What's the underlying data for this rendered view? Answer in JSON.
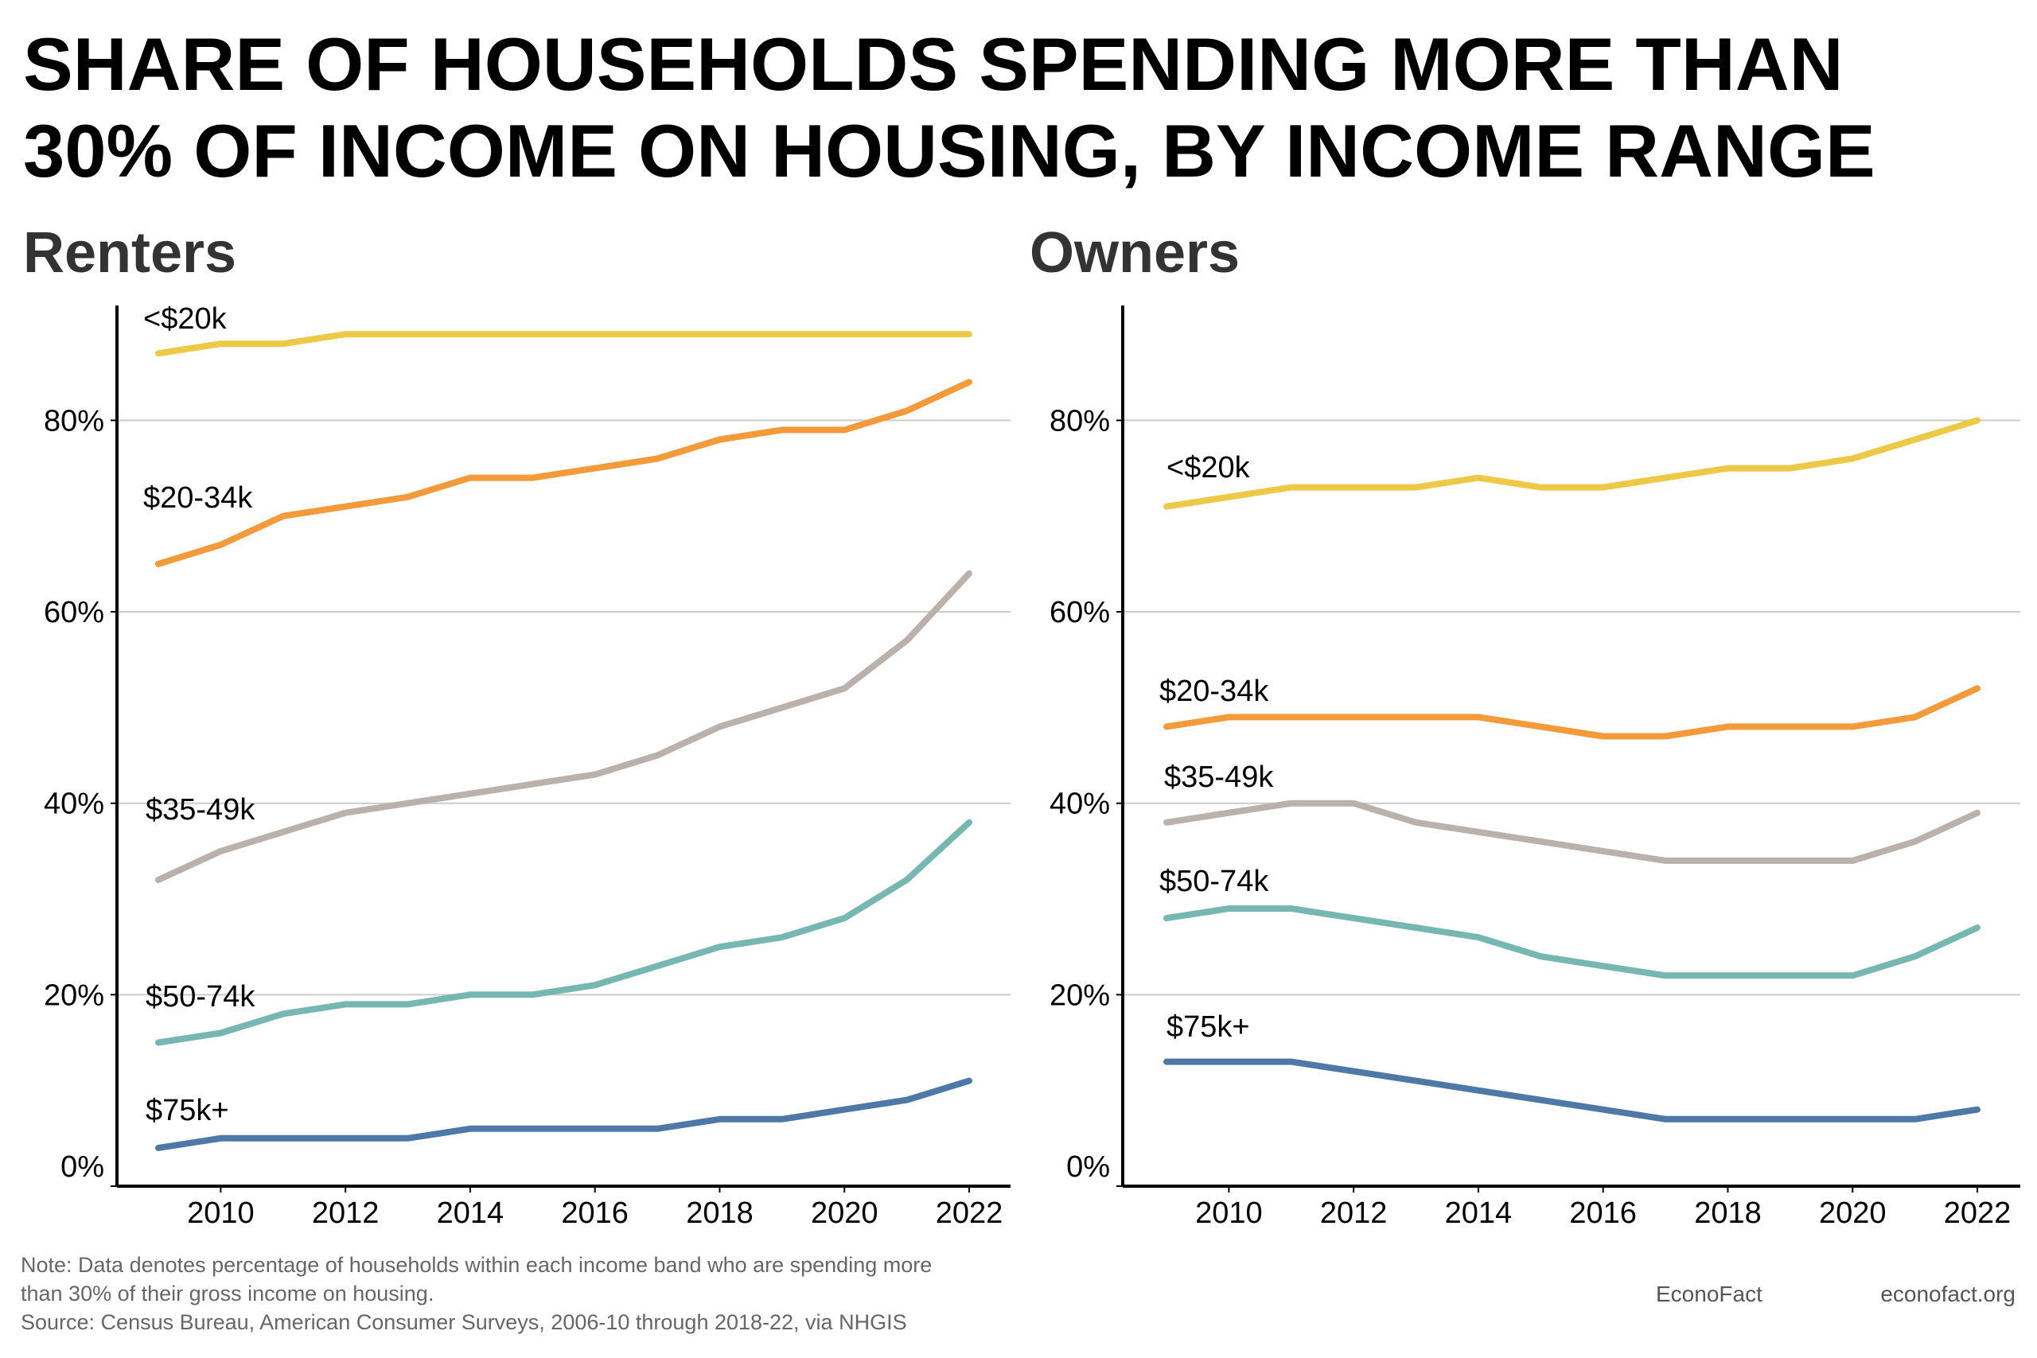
{
  "title_lines": [
    "SHARE OF HOUSEHOLDS SPENDING MORE THAN",
    "30% OF INCOME ON HOUSING, BY INCOME RANGE"
  ],
  "notes": [
    "Note: Data denotes percentage of households within each income band who are spending more",
    "than 30% of their gross income on housing.",
    "Source: Census Bureau, American Consumer Surveys, 2006-10 through 2018-22, via NHGIS"
  ],
  "credit_left": "EconoFact",
  "credit_right": "econofact.org",
  "chart_data": [
    {
      "type": "line",
      "title": "Renters",
      "x": [
        2009,
        2010,
        2011,
        2012,
        2013,
        2014,
        2015,
        2016,
        2017,
        2018,
        2019,
        2020,
        2021,
        2022
      ],
      "xticks": [
        2010,
        2012,
        2014,
        2016,
        2018,
        2020,
        2022
      ],
      "yticks": [
        0,
        20,
        40,
        60,
        80
      ],
      "ytick_labels": [
        "0%",
        "20%",
        "40%",
        "60%",
        "80%"
      ],
      "ylim": [
        0,
        92
      ],
      "grid": "horizontal",
      "legend": "inline labels",
      "series": [
        {
          "name": "<$20k",
          "color": "#EDC948",
          "values": [
            87,
            88,
            88,
            89,
            89,
            89,
            89,
            89,
            89,
            89,
            89,
            89,
            89,
            89
          ]
        },
        {
          "name": "$20-34k",
          "color": "#F39A3B",
          "values": [
            65,
            67,
            70,
            71,
            72,
            74,
            74,
            75,
            76,
            78,
            79,
            79,
            81,
            84
          ]
        },
        {
          "name": "$35-49k",
          "color": "#BAB0AC",
          "values": [
            32,
            35,
            37,
            39,
            40,
            41,
            42,
            43,
            45,
            48,
            50,
            52,
            57,
            64
          ]
        },
        {
          "name": "$50-74k",
          "color": "#76B7B2",
          "values": [
            15,
            16,
            18,
            19,
            19,
            20,
            20,
            21,
            23,
            25,
            26,
            28,
            32,
            38
          ]
        },
        {
          "name": "$75k+",
          "color": "#4E79A7",
          "values": [
            4,
            5,
            5,
            5,
            5,
            6,
            6,
            6,
            6,
            7,
            7,
            8,
            9,
            11
          ]
        }
      ]
    },
    {
      "type": "line",
      "title": "Owners",
      "x": [
        2009,
        2010,
        2011,
        2012,
        2013,
        2014,
        2015,
        2016,
        2017,
        2018,
        2019,
        2020,
        2021,
        2022
      ],
      "xticks": [
        2010,
        2012,
        2014,
        2016,
        2018,
        2020,
        2022
      ],
      "yticks": [
        0,
        20,
        40,
        60,
        80
      ],
      "ytick_labels": [
        "0%",
        "20%",
        "40%",
        "60%",
        "80%"
      ],
      "ylim": [
        0,
        92
      ],
      "grid": "horizontal",
      "legend": "inline labels",
      "series": [
        {
          "name": "<$20k",
          "color": "#EDC948",
          "values": [
            71,
            72,
            73,
            73,
            73,
            74,
            73,
            73,
            74,
            75,
            75,
            76,
            78,
            80
          ]
        },
        {
          "name": "$20-34k",
          "color": "#F39A3B",
          "values": [
            48,
            49,
            49,
            49,
            49,
            49,
            48,
            47,
            47,
            48,
            48,
            48,
            49,
            52
          ]
        },
        {
          "name": "$35-49k",
          "color": "#BAB0AC",
          "values": [
            38,
            39,
            40,
            40,
            38,
            37,
            36,
            35,
            34,
            34,
            34,
            34,
            36,
            39
          ]
        },
        {
          "name": "$50-74k",
          "color": "#76B7B2",
          "values": [
            28,
            29,
            29,
            28,
            27,
            26,
            24,
            23,
            22,
            22,
            22,
            22,
            24,
            27
          ]
        },
        {
          "name": "$75k+",
          "color": "#4E79A7",
          "values": [
            13,
            13,
            13,
            12,
            11,
            10,
            9,
            8,
            7,
            7,
            7,
            7,
            7,
            8
          ]
        }
      ]
    }
  ]
}
